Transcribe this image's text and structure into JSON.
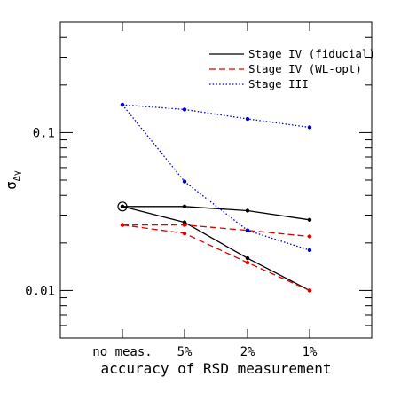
{
  "chart_data": {
    "type": "line",
    "title": "",
    "xlabel": "accuracy of RSD measurement",
    "ylabel": "σ",
    "ylabel_subscript": "Δγ",
    "yscale": "log",
    "ylim": [
      0.005,
      0.5
    ],
    "y_ticks": [
      {
        "value": 0.01,
        "label": "0.01"
      },
      {
        "value": 0.1,
        "label": "0.1"
      }
    ],
    "categories": [
      "no meas.",
      "5%",
      "2%",
      "1%"
    ],
    "legend_position": "top-right",
    "grid": false,
    "series": [
      {
        "name": "Stage IV (fiducial)",
        "style": "solid",
        "color": "#000000",
        "values": [
          0.034,
          0.027,
          0.016,
          0.01
        ]
      },
      {
        "name": "",
        "style": "solid",
        "color": "#000000",
        "values": [
          0.034,
          0.034,
          0.032,
          0.028
        ]
      },
      {
        "name": "Stage IV (WL-opt)",
        "style": "dashed",
        "color": "#e00000",
        "values": [
          0.026,
          0.023,
          0.015,
          0.01
        ]
      },
      {
        "name": "",
        "style": "dashed",
        "color": "#e00000",
        "values": [
          0.026,
          0.026,
          0.024,
          0.022
        ]
      },
      {
        "name": "Stage III",
        "style": "dotted",
        "color": "#0000cc",
        "values": [
          0.15,
          0.049,
          0.024,
          0.018
        ]
      },
      {
        "name": "",
        "style": "dotted",
        "color": "#0000cc",
        "values": [
          0.15,
          0.14,
          0.122,
          0.108
        ]
      }
    ],
    "highlight": {
      "category": "no meas.",
      "value": 0.034
    }
  }
}
